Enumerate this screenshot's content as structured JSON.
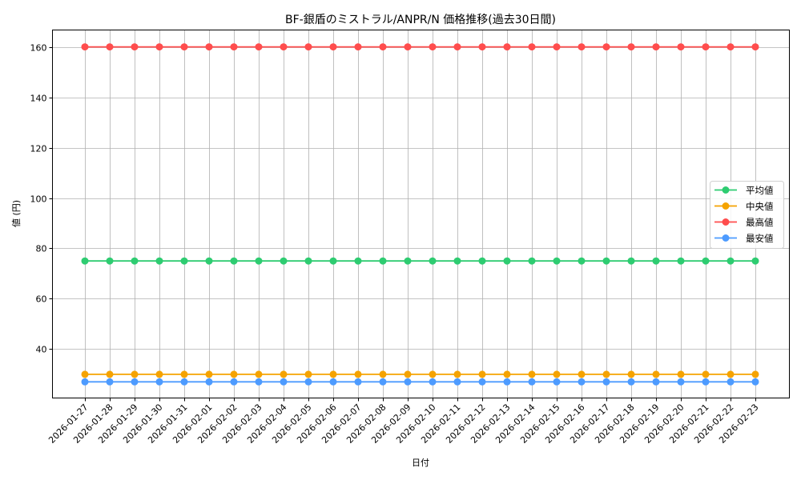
{
  "chart_data": {
    "type": "line",
    "title": "BF-銀盾のミストラル/ANPR/N 価格推移(過去30日間)",
    "xlabel": "日付",
    "ylabel": "値 (円)",
    "ylim": [
      20.6,
      166.7
    ],
    "yticks": [
      40,
      60,
      80,
      100,
      120,
      140,
      160
    ],
    "grid": true,
    "legend_position": "center right",
    "x": [
      "2026-01-27",
      "2026-01-28",
      "2026-01-29",
      "2026-01-30",
      "2026-01-31",
      "2026-02-01",
      "2026-02-02",
      "2026-02-03",
      "2026-02-04",
      "2026-02-05",
      "2026-02-06",
      "2026-02-07",
      "2026-02-08",
      "2026-02-09",
      "2026-02-10",
      "2026-02-11",
      "2026-02-12",
      "2026-02-13",
      "2026-02-14",
      "2026-02-15",
      "2026-02-16",
      "2026-02-17",
      "2026-02-18",
      "2026-02-19",
      "2026-02-20",
      "2026-02-21",
      "2026-02-22",
      "2026-02-23"
    ],
    "series": [
      {
        "name": "平均値",
        "color": "#2ecc71",
        "values": [
          75,
          75,
          75,
          75,
          75,
          75,
          75,
          75,
          75,
          75,
          75,
          75,
          75,
          75,
          75,
          75,
          75,
          75,
          75,
          75,
          75,
          75,
          75,
          75,
          75,
          75,
          75,
          75
        ]
      },
      {
        "name": "中央値",
        "color": "#f5a300",
        "values": [
          30,
          30,
          30,
          30,
          30,
          30,
          30,
          30,
          30,
          30,
          30,
          30,
          30,
          30,
          30,
          30,
          30,
          30,
          30,
          30,
          30,
          30,
          30,
          30,
          30,
          30,
          30,
          30
        ]
      },
      {
        "name": "最高値",
        "color": "#ff4d4d",
        "values": [
          160,
          160,
          160,
          160,
          160,
          160,
          160,
          160,
          160,
          160,
          160,
          160,
          160,
          160,
          160,
          160,
          160,
          160,
          160,
          160,
          160,
          160,
          160,
          160,
          160,
          160,
          160,
          160
        ]
      },
      {
        "name": "最安値",
        "color": "#4d9bff",
        "values": [
          27,
          27,
          27,
          27,
          27,
          27,
          27,
          27,
          27,
          27,
          27,
          27,
          27,
          27,
          27,
          27,
          27,
          27,
          27,
          27,
          27,
          27,
          27,
          27,
          27,
          27,
          27,
          27
        ]
      }
    ]
  }
}
